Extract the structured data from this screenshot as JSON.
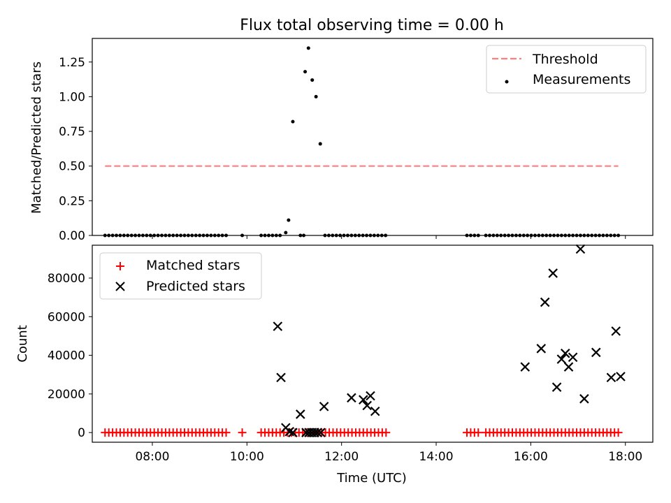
{
  "figure_title": "Flux total observing time = 0.00 h",
  "chart_data": [
    {
      "type": "scatter",
      "ylabel": "Matched/Predicted stars",
      "xlim": [
        6.73,
        18.58
      ],
      "ylim": [
        0,
        1.42
      ],
      "yticks": [
        0,
        0.25,
        0.5,
        0.75,
        1.0,
        1.25
      ],
      "ytick_labels": [
        "0.00",
        "0.25",
        "0.50",
        "0.75",
        "1.00",
        "1.25"
      ],
      "legend_position": "upper right",
      "threshold": {
        "name": "Threshold",
        "value": 0.5,
        "x_range": [
          7.0,
          17.85
        ],
        "color": "#ff7f7f",
        "style": "dashed"
      },
      "series": [
        {
          "name": "Measurements",
          "marker": "dot",
          "color": "#000000",
          "points": [
            [
              7.0,
              0
            ],
            [
              7.08,
              0
            ],
            [
              7.16,
              0
            ],
            [
              7.24,
              0
            ],
            [
              7.32,
              0
            ],
            [
              7.4,
              0
            ],
            [
              7.48,
              0
            ],
            [
              7.56,
              0
            ],
            [
              7.64,
              0
            ],
            [
              7.72,
              0
            ],
            [
              7.8,
              0
            ],
            [
              7.88,
              0
            ],
            [
              7.96,
              0
            ],
            [
              8.04,
              0
            ],
            [
              8.12,
              0
            ],
            [
              8.2,
              0
            ],
            [
              8.28,
              0
            ],
            [
              8.36,
              0
            ],
            [
              8.44,
              0
            ],
            [
              8.52,
              0
            ],
            [
              8.6,
              0
            ],
            [
              8.68,
              0
            ],
            [
              8.76,
              0
            ],
            [
              8.84,
              0
            ],
            [
              8.92,
              0
            ],
            [
              9.0,
              0
            ],
            [
              9.08,
              0
            ],
            [
              9.16,
              0
            ],
            [
              9.24,
              0
            ],
            [
              9.32,
              0
            ],
            [
              9.4,
              0
            ],
            [
              9.48,
              0
            ],
            [
              9.56,
              0
            ],
            [
              9.9,
              0
            ],
            [
              10.3,
              0
            ],
            [
              10.38,
              0
            ],
            [
              10.46,
              0
            ],
            [
              10.54,
              0
            ],
            [
              10.62,
              0
            ],
            [
              10.7,
              0
            ],
            [
              10.82,
              0.02
            ],
            [
              10.88,
              0.11
            ],
            [
              10.97,
              0.82
            ],
            [
              11.13,
              0
            ],
            [
              11.2,
              0
            ],
            [
              11.23,
              1.18
            ],
            [
              11.3,
              1.35
            ],
            [
              11.38,
              1.12
            ],
            [
              11.46,
              1.0
            ],
            [
              11.55,
              0.66
            ],
            [
              11.65,
              0
            ],
            [
              11.73,
              0
            ],
            [
              11.81,
              0
            ],
            [
              11.89,
              0
            ],
            [
              11.97,
              0
            ],
            [
              12.05,
              0
            ],
            [
              12.13,
              0
            ],
            [
              12.21,
              0
            ],
            [
              12.29,
              0
            ],
            [
              12.37,
              0
            ],
            [
              12.45,
              0
            ],
            [
              12.53,
              0
            ],
            [
              12.61,
              0
            ],
            [
              12.69,
              0
            ],
            [
              12.77,
              0
            ],
            [
              12.85,
              0
            ],
            [
              12.93,
              0
            ],
            [
              14.65,
              0
            ],
            [
              14.73,
              0
            ],
            [
              14.81,
              0
            ],
            [
              14.89,
              0
            ],
            [
              15.05,
              0
            ],
            [
              15.13,
              0
            ],
            [
              15.21,
              0
            ],
            [
              15.29,
              0
            ],
            [
              15.37,
              0
            ],
            [
              15.45,
              0
            ],
            [
              15.53,
              0
            ],
            [
              15.61,
              0
            ],
            [
              15.69,
              0
            ],
            [
              15.77,
              0
            ],
            [
              15.85,
              0
            ],
            [
              15.93,
              0
            ],
            [
              16.01,
              0
            ],
            [
              16.09,
              0
            ],
            [
              16.17,
              0
            ],
            [
              16.25,
              0
            ],
            [
              16.33,
              0
            ],
            [
              16.41,
              0
            ],
            [
              16.49,
              0
            ],
            [
              16.57,
              0
            ],
            [
              16.65,
              0
            ],
            [
              16.73,
              0
            ],
            [
              16.81,
              0
            ],
            [
              16.89,
              0
            ],
            [
              16.97,
              0
            ],
            [
              17.05,
              0
            ],
            [
              17.13,
              0
            ],
            [
              17.21,
              0
            ],
            [
              17.29,
              0
            ],
            [
              17.37,
              0
            ],
            [
              17.45,
              0
            ],
            [
              17.53,
              0
            ],
            [
              17.61,
              0
            ],
            [
              17.69,
              0
            ],
            [
              17.77,
              0
            ],
            [
              17.85,
              0
            ]
          ]
        }
      ]
    },
    {
      "type": "scatter",
      "xlabel": "Time (UTC)",
      "ylabel": "Count",
      "xlim": [
        6.73,
        18.58
      ],
      "ylim": [
        -5000,
        97000
      ],
      "xticks": [
        8,
        10,
        12,
        14,
        16,
        18
      ],
      "xtick_labels": [
        "08:00",
        "10:00",
        "12:00",
        "14:00",
        "16:00",
        "18:00"
      ],
      "yticks": [
        0,
        20000,
        40000,
        60000,
        80000
      ],
      "ytick_labels": [
        "0",
        "20000",
        "40000",
        "60000",
        "80000"
      ],
      "legend_position": "upper left",
      "series": [
        {
          "name": "Matched stars",
          "marker": "plus",
          "color": "#ff0000",
          "points": [
            [
              7.0,
              0
            ],
            [
              7.08,
              0
            ],
            [
              7.16,
              0
            ],
            [
              7.24,
              0
            ],
            [
              7.32,
              0
            ],
            [
              7.4,
              0
            ],
            [
              7.48,
              0
            ],
            [
              7.56,
              0
            ],
            [
              7.64,
              0
            ],
            [
              7.72,
              0
            ],
            [
              7.8,
              0
            ],
            [
              7.88,
              0
            ],
            [
              7.96,
              0
            ],
            [
              8.04,
              0
            ],
            [
              8.12,
              0
            ],
            [
              8.2,
              0
            ],
            [
              8.28,
              0
            ],
            [
              8.36,
              0
            ],
            [
              8.44,
              0
            ],
            [
              8.52,
              0
            ],
            [
              8.6,
              0
            ],
            [
              8.68,
              0
            ],
            [
              8.76,
              0
            ],
            [
              8.84,
              0
            ],
            [
              8.92,
              0
            ],
            [
              9.0,
              0
            ],
            [
              9.08,
              0
            ],
            [
              9.16,
              0
            ],
            [
              9.24,
              0
            ],
            [
              9.32,
              0
            ],
            [
              9.4,
              0
            ],
            [
              9.48,
              0
            ],
            [
              9.56,
              0
            ],
            [
              9.9,
              0
            ],
            [
              10.3,
              0
            ],
            [
              10.38,
              0
            ],
            [
              10.46,
              0
            ],
            [
              10.54,
              0
            ],
            [
              10.62,
              0
            ],
            [
              10.7,
              0
            ],
            [
              10.78,
              0
            ],
            [
              10.86,
              0
            ],
            [
              10.94,
              0
            ],
            [
              11.02,
              0
            ],
            [
              11.1,
              0
            ],
            [
              11.18,
              0
            ],
            [
              11.26,
              0
            ],
            [
              11.34,
              0
            ],
            [
              11.42,
              0
            ],
            [
              11.5,
              0
            ],
            [
              11.58,
              0
            ],
            [
              11.66,
              0
            ],
            [
              11.74,
              0
            ],
            [
              11.82,
              0
            ],
            [
              11.9,
              0
            ],
            [
              11.98,
              0
            ],
            [
              12.06,
              0
            ],
            [
              12.14,
              0
            ],
            [
              12.22,
              0
            ],
            [
              12.3,
              0
            ],
            [
              12.38,
              0
            ],
            [
              12.46,
              0
            ],
            [
              12.54,
              0
            ],
            [
              12.62,
              0
            ],
            [
              12.7,
              0
            ],
            [
              12.78,
              0
            ],
            [
              12.86,
              0
            ],
            [
              12.94,
              0
            ],
            [
              14.65,
              0
            ],
            [
              14.73,
              0
            ],
            [
              14.81,
              0
            ],
            [
              14.89,
              0
            ],
            [
              15.05,
              0
            ],
            [
              15.13,
              0
            ],
            [
              15.21,
              0
            ],
            [
              15.29,
              0
            ],
            [
              15.37,
              0
            ],
            [
              15.45,
              0
            ],
            [
              15.53,
              0
            ],
            [
              15.61,
              0
            ],
            [
              15.69,
              0
            ],
            [
              15.77,
              0
            ],
            [
              15.85,
              0
            ],
            [
              15.93,
              0
            ],
            [
              16.01,
              0
            ],
            [
              16.09,
              0
            ],
            [
              16.17,
              0
            ],
            [
              16.25,
              0
            ],
            [
              16.33,
              0
            ],
            [
              16.41,
              0
            ],
            [
              16.49,
              0
            ],
            [
              16.57,
              0
            ],
            [
              16.65,
              0
            ],
            [
              16.73,
              0
            ],
            [
              16.81,
              0
            ],
            [
              16.89,
              0
            ],
            [
              16.97,
              0
            ],
            [
              17.05,
              0
            ],
            [
              17.13,
              0
            ],
            [
              17.21,
              0
            ],
            [
              17.29,
              0
            ],
            [
              17.37,
              0
            ],
            [
              17.45,
              0
            ],
            [
              17.53,
              0
            ],
            [
              17.61,
              0
            ],
            [
              17.69,
              0
            ],
            [
              17.77,
              0
            ],
            [
              17.85,
              0
            ]
          ]
        },
        {
          "name": "Predicted stars",
          "marker": "x",
          "color": "#000000",
          "points": [
            [
              10.65,
              55000
            ],
            [
              10.72,
              28500
            ],
            [
              10.82,
              2500
            ],
            [
              10.9,
              500
            ],
            [
              10.97,
              0
            ],
            [
              11.13,
              9500
            ],
            [
              11.25,
              0
            ],
            [
              11.31,
              0
            ],
            [
              11.37,
              0
            ],
            [
              11.43,
              0
            ],
            [
              11.49,
              0
            ],
            [
              11.56,
              0
            ],
            [
              11.63,
              13500
            ],
            [
              12.21,
              18000
            ],
            [
              12.46,
              17000
            ],
            [
              12.54,
              14000
            ],
            [
              12.61,
              19000
            ],
            [
              12.71,
              11000
            ],
            [
              15.88,
              34000
            ],
            [
              16.22,
              43500
            ],
            [
              16.3,
              67500
            ],
            [
              16.47,
              82500
            ],
            [
              16.55,
              23500
            ],
            [
              16.65,
              38000
            ],
            [
              16.73,
              41000
            ],
            [
              16.8,
              34000
            ],
            [
              16.89,
              39000
            ],
            [
              17.05,
              95000
            ],
            [
              17.13,
              17500
            ],
            [
              17.38,
              41500
            ],
            [
              17.7,
              28500
            ],
            [
              17.8,
              52500
            ],
            [
              17.9,
              29000
            ]
          ]
        }
      ]
    }
  ]
}
